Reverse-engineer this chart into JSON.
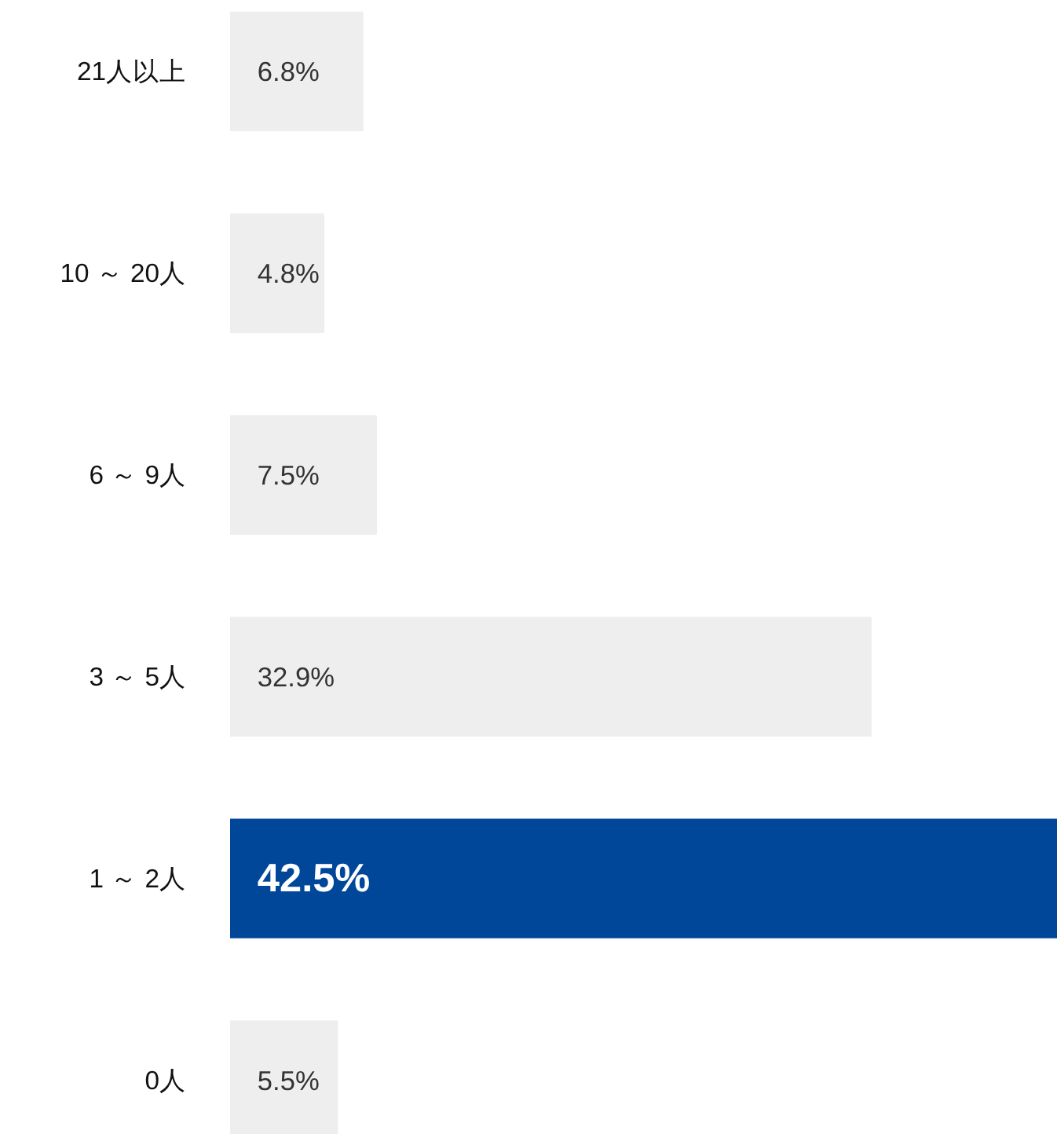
{
  "chart_data": {
    "type": "bar",
    "orientation": "horizontal",
    "categories": [
      "21人以上",
      "10 ～ 20人",
      "6 ～ 9人",
      "3 ～ 5人",
      "1 ～ 2人",
      "0人"
    ],
    "values": [
      6.8,
      4.8,
      7.5,
      32.9,
      42.5,
      5.5
    ],
    "colors": [
      "#eeeeee",
      "#eeeeee",
      "#eeeeee",
      "#eeeeee",
      "#00479a",
      "#eeeeee"
    ],
    "value_labels": [
      "6.8%",
      "4.8%",
      "7.5%",
      "32.9%",
      "42.5%",
      "5.5%"
    ]
  }
}
